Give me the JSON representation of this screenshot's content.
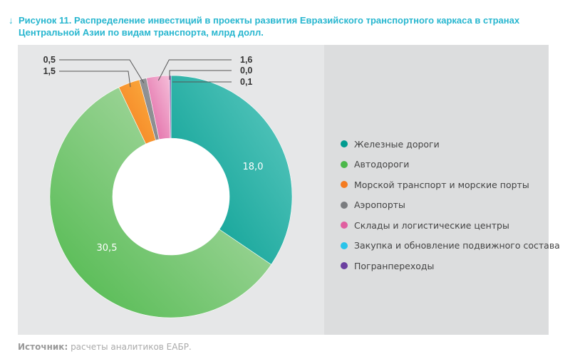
{
  "title": {
    "arrow": "↓",
    "text": "Рисунок 11. Распределение инвестиций в проекты развития Евразийского транспортного каркаса в странах Центральной Азии по видам транспорта, млрд долл."
  },
  "chart_data": {
    "type": "pie",
    "donut": true,
    "title": "Рисунок 11. Распределение инвестиций в проекты развития Евразийского транспортного каркаса в странах Центральной Азии по видам транспорта, млрд долл.",
    "legend_position": "right",
    "slices": [
      {
        "name": "Железные дороги",
        "value": 18.0,
        "label": "18,0",
        "color": "#009b8f",
        "color2": "#5fcac1"
      },
      {
        "name": "Автодороги",
        "value": 30.5,
        "label": "30,5",
        "color": "#4cb84a",
        "color2": "#bfe0b8"
      },
      {
        "name": "Морской транспорт и морские порты",
        "value": 1.5,
        "label": "1,5",
        "color": "#f47b20",
        "color2": "#fbb040"
      },
      {
        "name": "Аэропорты",
        "value": 0.5,
        "label": "0,5",
        "color": "#7a7c7f",
        "color2": "#a0a2a5"
      },
      {
        "name": "Склады и логистические центры",
        "value": 1.6,
        "label": "1,6",
        "color": "#e05fa0",
        "color2": "#f5c0da"
      },
      {
        "name": "Закупка и обновление подвижного состава",
        "value": 0.0,
        "label": "0,0",
        "color": "#29c4ea",
        "color2": "#29c4ea"
      },
      {
        "name": "Погранпереходы",
        "value": 0.1,
        "label": "0,1",
        "color": "#6b3fa0",
        "color2": "#6b3fa0"
      }
    ]
  },
  "source": {
    "label": "Источник:",
    "text": " расчеты аналитиков ЕАБР."
  }
}
